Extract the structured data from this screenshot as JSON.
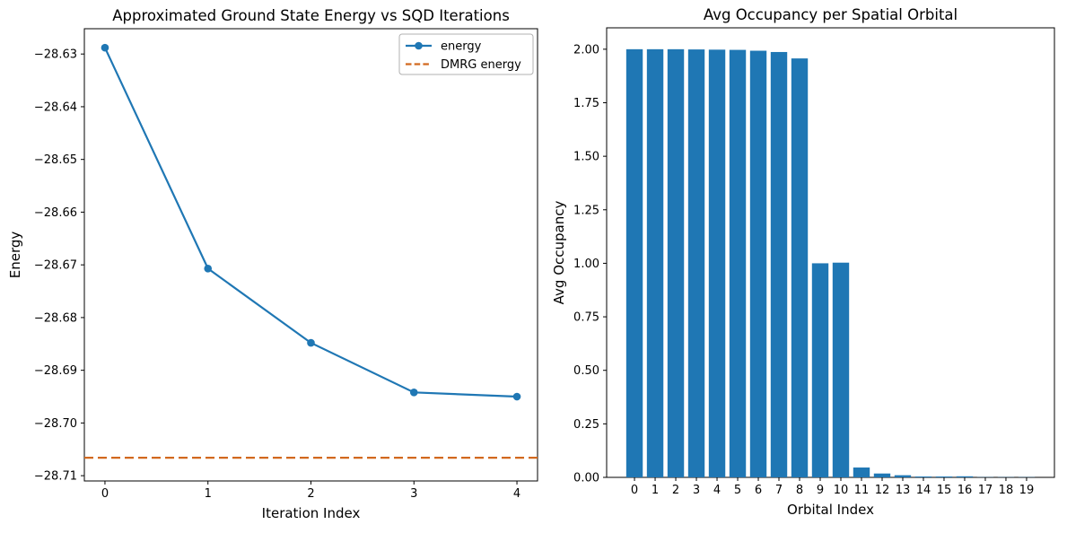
{
  "figure": {
    "background": "#ffffff"
  },
  "chart_data": [
    {
      "type": "line",
      "title": "Approximated Ground State Energy vs SQD Iterations",
      "xlabel": "Iteration Index",
      "ylabel": "Energy",
      "x": [
        0,
        1,
        2,
        3,
        4
      ],
      "series": [
        {
          "name": "energy",
          "values": [
            -28.6288,
            -28.6707,
            -28.6848,
            -28.6942,
            -28.695
          ],
          "color": "#1f77b4",
          "marker": "circle",
          "style": "solid"
        }
      ],
      "hline": {
        "name": "DMRG energy",
        "value": -28.7066,
        "color": "#d2691e",
        "style": "dashed"
      },
      "xlim": [
        -0.2,
        4.2
      ],
      "ylim": [
        -28.711,
        -28.6252
      ],
      "xticks": [
        0,
        1,
        2,
        3,
        4
      ],
      "xtick_labels": [
        "0",
        "1",
        "2",
        "3",
        "4"
      ],
      "yticks": [
        -28.63,
        -28.64,
        -28.65,
        -28.66,
        -28.67,
        -28.68,
        -28.69,
        -28.7,
        -28.71
      ],
      "ytick_labels": [
        "−28.63",
        "−28.64",
        "−28.65",
        "−28.66",
        "−28.67",
        "−28.68",
        "−28.69",
        "−28.70",
        "−28.71"
      ],
      "legend": {
        "position": "upper right",
        "entries": [
          "energy",
          "DMRG energy"
        ]
      },
      "grid": false
    },
    {
      "type": "bar",
      "title": "Avg Occupancy per Spatial Orbital",
      "xlabel": "Orbital Index",
      "ylabel": "Avg Occupancy",
      "categories": [
        "0",
        "1",
        "2",
        "3",
        "4",
        "5",
        "6",
        "7",
        "8",
        "9",
        "10",
        "11",
        "12",
        "13",
        "14",
        "15",
        "16",
        "17",
        "18",
        "19"
      ],
      "values": [
        2.0,
        2.0,
        2.0,
        1.999,
        1.998,
        1.997,
        1.993,
        1.987,
        1.957,
        1.0,
        1.003,
        0.046,
        0.018,
        0.01,
        0.004,
        0.004,
        0.005,
        0.001,
        0.001,
        0.001
      ],
      "bar_color": "#1f77b4",
      "xlim": [
        -1.35,
        20.35
      ],
      "ylim": [
        0,
        2.1
      ],
      "yticks": [
        0,
        0.25,
        0.5,
        0.75,
        1.0,
        1.25,
        1.5,
        1.75,
        2.0
      ],
      "ytick_labels": [
        "0.00",
        "0.25",
        "0.50",
        "0.75",
        "1.00",
        "1.25",
        "1.50",
        "1.75",
        "2.00"
      ],
      "grid": false
    }
  ]
}
